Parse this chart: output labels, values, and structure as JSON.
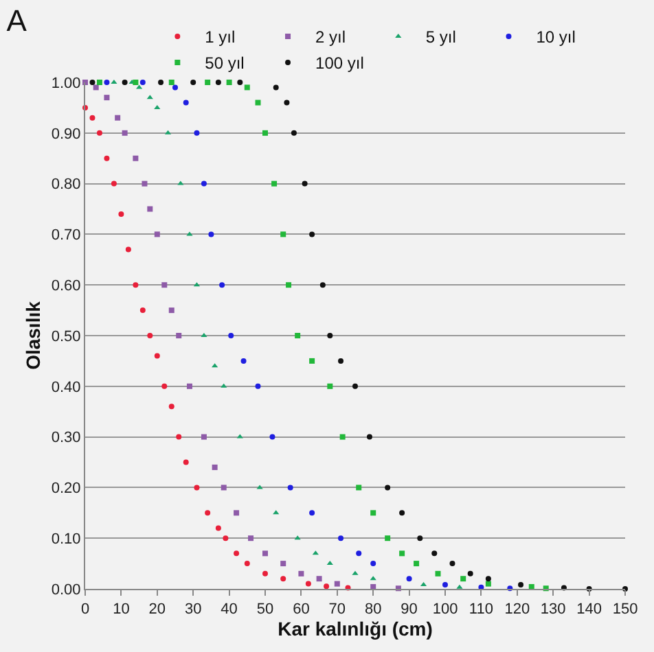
{
  "chart_data": {
    "type": "scatter",
    "title": "A",
    "xlabel": "Kar kalınlığı (cm)",
    "ylabel": "Olasılık",
    "xlim": [
      0,
      150
    ],
    "ylim": [
      0,
      1
    ],
    "xticks": [
      0,
      10,
      20,
      30,
      40,
      50,
      60,
      70,
      80,
      90,
      100,
      110,
      120,
      130,
      140,
      150
    ],
    "yticks": [
      {
        "value": 0,
        "label": "0.00"
      },
      {
        "value": 0.1,
        "label": "0.10"
      },
      {
        "value": 0.2,
        "label": "0.20"
      },
      {
        "value": 0.3,
        "label": "0.30"
      },
      {
        "value": 0.4,
        "label": "0.40"
      },
      {
        "value": 0.5,
        "label": "0.50"
      },
      {
        "value": 0.6,
        "label": "0.60"
      },
      {
        "value": 0.7,
        "label": "0.70"
      },
      {
        "value": 0.8,
        "label": "0.80"
      },
      {
        "value": 0.9,
        "label": "0.90"
      },
      {
        "value": 1,
        "label": "1.00"
      }
    ],
    "grid": "y",
    "legend": "top",
    "series": [
      {
        "name": "1 yıl",
        "color": "#e8203a",
        "marker": "circle",
        "x": [
          0,
          2,
          4,
          6,
          8,
          10,
          12,
          14,
          16,
          18,
          20,
          22,
          24,
          26,
          28,
          31,
          34,
          37,
          39,
          42,
          45,
          50,
          55,
          62,
          67,
          73
        ],
        "values": [
          0.95,
          0.93,
          0.9,
          0.85,
          0.8,
          0.74,
          0.67,
          0.6,
          0.55,
          0.5,
          0.46,
          0.4,
          0.36,
          0.3,
          0.25,
          0.2,
          0.15,
          0.12,
          0.1,
          0.07,
          0.05,
          0.03,
          0.02,
          0.01,
          0.005,
          0.002
        ]
      },
      {
        "name": "2 yıl",
        "color": "#8e5ba8",
        "marker": "square",
        "x": [
          0,
          3,
          6,
          9,
          11,
          14,
          16.5,
          18,
          20,
          22,
          24,
          26,
          29,
          33,
          36,
          38.5,
          42,
          46,
          50,
          55,
          60,
          65,
          70,
          80,
          87
        ],
        "values": [
          1,
          0.99,
          0.97,
          0.93,
          0.9,
          0.85,
          0.8,
          0.75,
          0.7,
          0.6,
          0.55,
          0.5,
          0.4,
          0.3,
          0.24,
          0.2,
          0.15,
          0.1,
          0.07,
          0.05,
          0.03,
          0.02,
          0.01,
          0.004,
          0.001
        ]
      },
      {
        "name": "5 yıl",
        "color": "#1aa36a",
        "marker": "triangle",
        "x": [
          8,
          13,
          15,
          18,
          20,
          23,
          26.5,
          29,
          31,
          33,
          36,
          38.5,
          43,
          48.5,
          53,
          59,
          64,
          68,
          75,
          80,
          94,
          104
        ],
        "values": [
          1,
          1,
          0.99,
          0.97,
          0.95,
          0.9,
          0.8,
          0.7,
          0.6,
          0.5,
          0.44,
          0.4,
          0.3,
          0.2,
          0.15,
          0.1,
          0.07,
          0.05,
          0.03,
          0.02,
          0.008,
          0.003
        ]
      },
      {
        "name": "10 yıl",
        "color": "#1f1fe0",
        "marker": "circle",
        "x": [
          6,
          16,
          25,
          28,
          31,
          33,
          35,
          38,
          40.5,
          44,
          48,
          52,
          57,
          63,
          71,
          76,
          80,
          90,
          100,
          110,
          118
        ],
        "values": [
          1,
          1,
          0.99,
          0.96,
          0.9,
          0.8,
          0.7,
          0.6,
          0.5,
          0.45,
          0.4,
          0.3,
          0.2,
          0.15,
          0.1,
          0.07,
          0.05,
          0.02,
          0.008,
          0.003,
          0.001
        ]
      },
      {
        "name": "50 yıl",
        "color": "#22b83a",
        "marker": "square",
        "x": [
          4,
          14,
          24,
          34,
          40,
          45,
          48,
          50,
          52.5,
          55,
          56.5,
          59,
          63,
          68,
          71.5,
          76,
          80,
          84,
          88,
          92,
          98,
          105,
          112,
          124,
          128
        ],
        "values": [
          1,
          1,
          1,
          1,
          1,
          0.99,
          0.96,
          0.9,
          0.8,
          0.7,
          0.6,
          0.5,
          0.45,
          0.4,
          0.3,
          0.2,
          0.15,
          0.1,
          0.07,
          0.05,
          0.03,
          0.02,
          0.01,
          0.004,
          0.001
        ]
      },
      {
        "name": "100 yıl",
        "color": "#111111",
        "marker": "circle",
        "x": [
          2,
          11,
          21,
          30,
          37,
          43,
          53,
          56,
          58,
          61,
          63,
          66,
          68,
          71,
          75,
          79,
          84,
          88,
          93,
          97,
          102,
          107,
          112,
          121,
          133,
          140,
          150
        ],
        "values": [
          1,
          1,
          1,
          1,
          1,
          1,
          0.99,
          0.96,
          0.9,
          0.8,
          0.7,
          0.6,
          0.5,
          0.45,
          0.4,
          0.3,
          0.2,
          0.15,
          0.1,
          0.07,
          0.05,
          0.03,
          0.02,
          0.008,
          0.002,
          0,
          0
        ]
      }
    ]
  }
}
